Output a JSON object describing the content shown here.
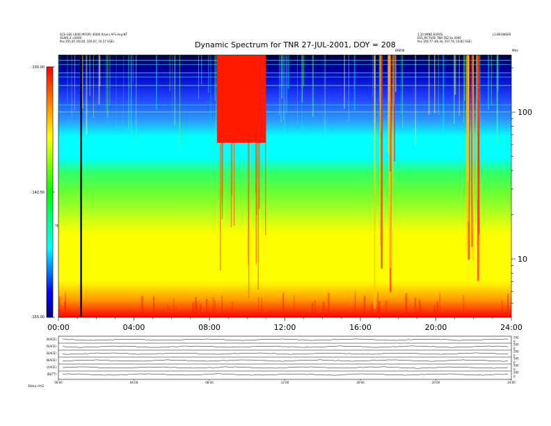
{
  "header": {
    "left_lines": [
      "ACE-GSE (3000 MFGR) (6000 ft/sec)  AFS-Ang-NT",
      "AGWS-2 +0000",
      "Pos   355.45 (46.85, 356.87, 16.57 GSE)"
    ],
    "right_lines": [
      "1.10 WIND EUROS",
      "ESS_PICTURE TNR 282 Ee 2000",
      "Pos   359.77 (46.34, 357.76, 16.81 GSE)"
    ],
    "right_corner": "L3 BROWSER",
    "right_marker": "MHz",
    "center_marker": "BRK08"
  },
  "chart_data": {
    "type": "heatmap",
    "title": "Dynamic Spectrum for TNR 27-JUL-2001, DOY = 208",
    "xlabel": "",
    "ylabel": "",
    "x_range_hours": [
      0,
      24
    ],
    "x_ticks": [
      "00:00",
      "04:00",
      "08:00",
      "12:00",
      "16:00",
      "20:00",
      "24:00"
    ],
    "y_scale": "log",
    "y_range_khz": [
      4,
      245
    ],
    "y_ticks": [
      "100",
      "10"
    ],
    "y_tick_values": [
      100,
      10
    ],
    "colorbar": {
      "label": "TNR",
      "range_db": [
        -155,
        -130
      ],
      "ticks": [
        "-130.00",
        "-142.50",
        "-155.00"
      ],
      "colors": [
        "#ff0000",
        "#ffff00",
        "#00ff00",
        "#00ffff",
        "#0000ff",
        "#000080"
      ]
    },
    "cursor_time_hours": 1.2,
    "bursts": [
      {
        "start_hours": 8.4,
        "end_hours": 9.9,
        "kind": "red-block"
      },
      {
        "start_hours": 9.9,
        "end_hours": 11.0,
        "kind": "red-block"
      },
      {
        "start_hours": 16.6,
        "end_hours": 17.8,
        "kind": "streaks"
      },
      {
        "start_hours": 21.6,
        "end_hours": 22.3,
        "kind": "streaks"
      }
    ]
  },
  "bottom_panels": {
    "labels": [
      "B(ACE)",
      "B(ACE)",
      "B(ACE)",
      "N(ACE)",
      "V(ACE)",
      "|B|(TT)"
    ],
    "right_ticks": [
      "200",
      "0",
      "500",
      "0",
      "200",
      "0",
      "500",
      "0",
      "500",
      "0",
      "200",
      "0"
    ],
    "x_ticks": [
      "00:00",
      "04:00",
      "08:00",
      "12:00",
      "16:00",
      "20:00",
      "24:00"
    ],
    "footer": "Status   ctrl2"
  }
}
